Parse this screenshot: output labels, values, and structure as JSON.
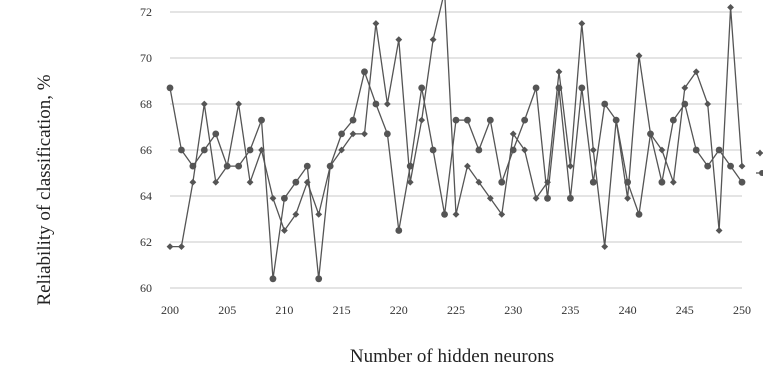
{
  "chart_data": {
    "type": "line",
    "xlabel": "Number of hidden neurons",
    "ylabel": "Reliability of classification, %",
    "xlim": [
      200,
      250
    ],
    "ylim": [
      60,
      72
    ],
    "xticks": [
      200,
      205,
      210,
      215,
      220,
      225,
      230,
      235,
      240,
      245,
      250
    ],
    "yticks": [
      60,
      62,
      64,
      66,
      68,
      70,
      72
    ],
    "grid": "horizontal",
    "legend": "right, clipped",
    "line_color": "#555555",
    "x": [
      200,
      201,
      202,
      203,
      204,
      205,
      206,
      207,
      208,
      209,
      210,
      211,
      212,
      213,
      214,
      215,
      216,
      217,
      218,
      219,
      220,
      221,
      222,
      223,
      224,
      225,
      226,
      227,
      228,
      229,
      230,
      231,
      232,
      233,
      234,
      235,
      236,
      237,
      238,
      239,
      240,
      241,
      242,
      243,
      244,
      245,
      246,
      247,
      248,
      249,
      250
    ],
    "series": [
      {
        "marker": "circle",
        "values": [
          68.7,
          66.0,
          65.3,
          66.0,
          66.7,
          65.3,
          65.3,
          66.0,
          67.3,
          60.4,
          63.9,
          64.6,
          65.3,
          60.4,
          65.3,
          66.7,
          67.3,
          69.4,
          68.0,
          66.7,
          62.5,
          65.3,
          68.7,
          66.0,
          63.2,
          67.3,
          67.3,
          66.0,
          67.3,
          64.6,
          66.0,
          67.3,
          68.7,
          63.9,
          68.7,
          63.9,
          68.7,
          64.6,
          68.0,
          67.3,
          64.6,
          63.2,
          66.7,
          64.6,
          67.3,
          68.0,
          66.0,
          65.3,
          66.0,
          65.3,
          64.6
        ]
      },
      {
        "marker": "diamond",
        "values": [
          61.8,
          61.8,
          64.6,
          68.0,
          64.6,
          65.3,
          68.0,
          64.6,
          66.0,
          63.9,
          62.5,
          63.2,
          64.6,
          63.2,
          65.3,
          66.0,
          66.7,
          66.7,
          71.5,
          68.0,
          70.8,
          64.6,
          67.3,
          70.8,
          72.9,
          63.2,
          65.3,
          64.6,
          63.9,
          63.2,
          66.7,
          66.0,
          63.9,
          64.6,
          69.4,
          65.3,
          71.5,
          66.0,
          61.8,
          67.3,
          63.9,
          70.1,
          66.7,
          66.0,
          64.6,
          68.7,
          69.4,
          68.0,
          62.5,
          72.2,
          65.3
        ]
      }
    ]
  }
}
